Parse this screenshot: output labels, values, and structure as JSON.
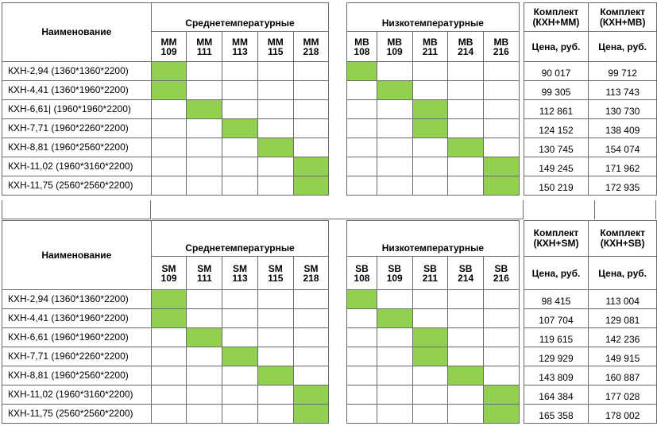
{
  "colors": {
    "highlight": "#92d050",
    "border": "#6b6b6b"
  },
  "top": {
    "name_header": "Наименование",
    "mid_title": "Среднетемпературные",
    "low_title": "Низкотемпературные",
    "kit1_header": "Комплект (КХН+ММ)",
    "kit2_header": "Комплект (КХН+МВ)",
    "price_header": "Цена, руб.",
    "mid_models": [
      [
        "ММ",
        "109"
      ],
      [
        "ММ",
        "111"
      ],
      [
        "ММ",
        "113"
      ],
      [
        "ММ",
        "115"
      ],
      [
        "ММ",
        "218"
      ]
    ],
    "low_models": [
      [
        "МВ",
        "108"
      ],
      [
        "МВ",
        "109"
      ],
      [
        "МВ",
        "211"
      ],
      [
        "МВ",
        "214"
      ],
      [
        "МВ",
        "216"
      ]
    ],
    "rows": [
      {
        "name": "КХН-2,94  (1360*1360*2200)",
        "mid": 0,
        "low": 0,
        "price1": "90 017",
        "price2": "99 712"
      },
      {
        "name": "КХН-4,41  (1360*1960*2200)",
        "mid": 0,
        "low": 1,
        "price1": "99 305",
        "price2": "113 743"
      },
      {
        "name": "КХН-6,61|  (1960*1960*2200)",
        "mid": 1,
        "low": 2,
        "price1": "112 861",
        "price2": "130 730"
      },
      {
        "name": "КХН-7,71  (1960*2260*2200)",
        "mid": 2,
        "low": 2,
        "price1": "124 152",
        "price2": "138 409"
      },
      {
        "name": "КХН-8,81  (1960*2560*2200)",
        "mid": 3,
        "low": 3,
        "price1": "130 745",
        "price2": "154 074"
      },
      {
        "name": "КХН-11,02  (1960*3160*2200)",
        "mid": 4,
        "low": 4,
        "price1": "149 245",
        "price2": "171 962"
      },
      {
        "name": "КХН-11,75  (2560*2560*2200)",
        "mid": 4,
        "low": 4,
        "price1": "150 219",
        "price2": "172 935"
      }
    ]
  },
  "bottom": {
    "name_header": "Наименование",
    "mid_title": "Среднетемпературные",
    "low_title": "Низкотемпературные",
    "kit1_header": "Комплект (КХН+SM)",
    "kit2_header": "Комплект (КХН+SB)",
    "price_header": "Цена, руб.",
    "mid_models": [
      [
        "SM",
        "109"
      ],
      [
        "SM",
        "111"
      ],
      [
        "SM",
        "113"
      ],
      [
        "SM",
        "115"
      ],
      [
        "SM",
        "218"
      ]
    ],
    "low_models": [
      [
        "SB",
        "108"
      ],
      [
        "SB",
        "109"
      ],
      [
        "SB",
        "211"
      ],
      [
        "SB",
        "214"
      ],
      [
        "SB",
        "216"
      ]
    ],
    "rows": [
      {
        "name": "КХН-2,94  (1360*1360*2200)",
        "mid": 0,
        "low": 0,
        "price1": "98 415",
        "price2": "113 004"
      },
      {
        "name": "КХН-4,41  (1360*1960*2200)",
        "mid": 0,
        "low": 1,
        "price1": "107 704",
        "price2": "129 081"
      },
      {
        "name": "КХН-6,61  (1960*1960*2200)",
        "mid": 1,
        "low": 2,
        "price1": "119 615",
        "price2": "142 236"
      },
      {
        "name": "КХН-7,71  (1960*2260*2200)",
        "mid": 2,
        "low": 2,
        "price1": "129 929",
        "price2": "149 915"
      },
      {
        "name": "КХН-8,81  (1960*2560*2200)",
        "mid": 3,
        "low": 3,
        "price1": "143 809",
        "price2": "160 887"
      },
      {
        "name": "КХН-11,02  (1960*3160*2200)",
        "mid": 4,
        "low": 4,
        "price1": "164 384",
        "price2": "177 028"
      },
      {
        "name": "КХН-11,75  (2560*2560*2200)",
        "mid": 4,
        "low": 4,
        "price1": "165 358",
        "price2": "178 002"
      }
    ]
  }
}
